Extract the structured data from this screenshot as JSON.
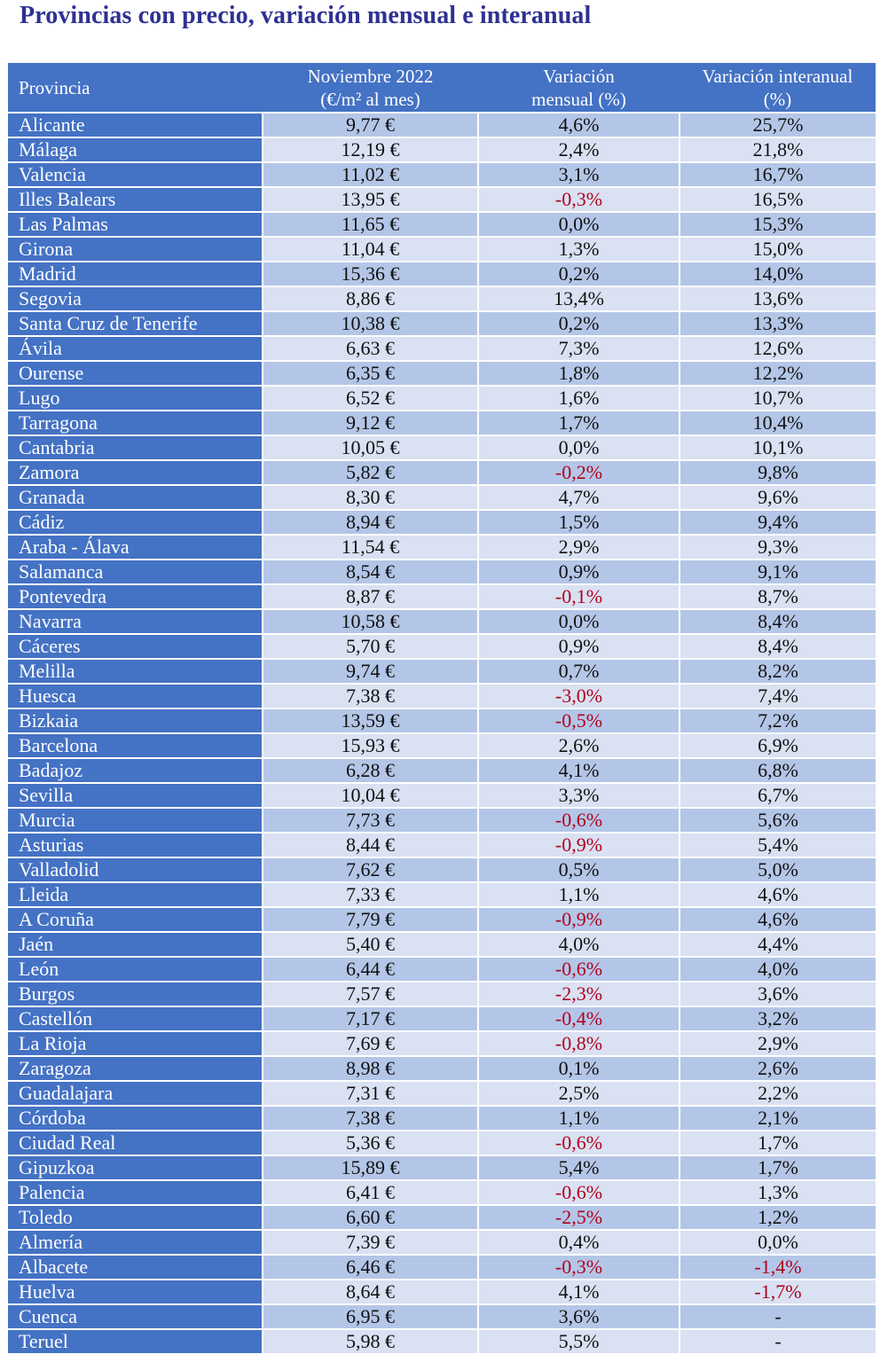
{
  "title": "Provincias con precio, variación mensual e interanual",
  "colors": {
    "header": "#4472c4",
    "row_dark": "#b4c6e7",
    "row_light": "#d9e1f2",
    "negative": "#b0001e",
    "title": "#2e3192"
  },
  "table": {
    "headers": [
      "Provincia",
      "Noviembre 2022",
      "(€/m² al mes)",
      "Variación",
      "mensual (%)",
      "Variación interanual",
      "(%)"
    ],
    "rows": [
      [
        "Alicante",
        "9,77 €",
        "4,6%",
        "25,7%"
      ],
      [
        "Málaga",
        "12,19 €",
        "2,4%",
        "21,8%"
      ],
      [
        "Valencia",
        "11,02 €",
        "3,1%",
        "16,7%"
      ],
      [
        "Illes Balears",
        "13,95 €",
        "-0,3%",
        "16,5%"
      ],
      [
        "Las Palmas",
        "11,65 €",
        "0,0%",
        "15,3%"
      ],
      [
        "Girona",
        "11,04 €",
        "1,3%",
        "15,0%"
      ],
      [
        "Madrid",
        "15,36 €",
        "0,2%",
        "14,0%"
      ],
      [
        "Segovia",
        "8,86 €",
        "13,4%",
        "13,6%"
      ],
      [
        "Santa Cruz de Tenerife",
        "10,38 €",
        "0,2%",
        "13,3%"
      ],
      [
        "Ávila",
        "6,63 €",
        "7,3%",
        "12,6%"
      ],
      [
        "Ourense",
        "6,35 €",
        "1,8%",
        "12,2%"
      ],
      [
        "Lugo",
        "6,52 €",
        "1,6%",
        "10,7%"
      ],
      [
        "Tarragona",
        "9,12 €",
        "1,7%",
        "10,4%"
      ],
      [
        "Cantabria",
        "10,05 €",
        "0,0%",
        "10,1%"
      ],
      [
        "Zamora",
        "5,82 €",
        "-0,2%",
        "9,8%"
      ],
      [
        "Granada",
        "8,30 €",
        "4,7%",
        "9,6%"
      ],
      [
        "Cádiz",
        "8,94 €",
        "1,5%",
        "9,4%"
      ],
      [
        "Araba - Álava",
        "11,54 €",
        "2,9%",
        "9,3%"
      ],
      [
        "Salamanca",
        "8,54 €",
        "0,9%",
        "9,1%"
      ],
      [
        "Pontevedra",
        "8,87 €",
        "-0,1%",
        "8,7%"
      ],
      [
        "Navarra",
        "10,58 €",
        "0,0%",
        "8,4%"
      ],
      [
        "Cáceres",
        "5,70 €",
        "0,9%",
        "8,4%"
      ],
      [
        "Melilla",
        "9,74 €",
        "0,7%",
        "8,2%"
      ],
      [
        "Huesca",
        "7,38 €",
        "-3,0%",
        "7,4%"
      ],
      [
        "Bizkaia",
        "13,59 €",
        "-0,5%",
        "7,2%"
      ],
      [
        "Barcelona",
        "15,93 €",
        "2,6%",
        "6,9%"
      ],
      [
        "Badajoz",
        "6,28 €",
        "4,1%",
        "6,8%"
      ],
      [
        "Sevilla",
        "10,04 €",
        "3,3%",
        "6,7%"
      ],
      [
        "Murcia",
        "7,73 €",
        "-0,6%",
        "5,6%"
      ],
      [
        "Asturias",
        "8,44 €",
        "-0,9%",
        "5,4%"
      ],
      [
        "Valladolid",
        "7,62 €",
        "0,5%",
        "5,0%"
      ],
      [
        "Lleida",
        "7,33 €",
        "1,1%",
        "4,6%"
      ],
      [
        "A Coruña",
        "7,79 €",
        "-0,9%",
        "4,6%"
      ],
      [
        "Jaén",
        "5,40 €",
        "4,0%",
        "4,4%"
      ],
      [
        "León",
        "6,44 €",
        "-0,6%",
        "4,0%"
      ],
      [
        "Burgos",
        "7,57 €",
        "-2,3%",
        "3,6%"
      ],
      [
        "Castellón",
        "7,17 €",
        "-0,4%",
        "3,2%"
      ],
      [
        "La Rioja",
        "7,69 €",
        "-0,8%",
        "2,9%"
      ],
      [
        "Zaragoza",
        "8,98 €",
        "0,1%",
        "2,6%"
      ],
      [
        "Guadalajara",
        "7,31 €",
        "2,5%",
        "2,2%"
      ],
      [
        "Córdoba",
        "7,38 €",
        "1,1%",
        "2,1%"
      ],
      [
        "Ciudad Real",
        "5,36 €",
        "-0,6%",
        "1,7%"
      ],
      [
        "Gipuzkoa",
        "15,89 €",
        "5,4%",
        "1,7%"
      ],
      [
        "Palencia",
        "6,41 €",
        "-0,6%",
        "1,3%"
      ],
      [
        "Toledo",
        "6,60 €",
        "-2,5%",
        "1,2%"
      ],
      [
        "Almería",
        "7,39 €",
        "0,4%",
        "0,0%"
      ],
      [
        "Albacete",
        "6,46 €",
        "-0,3%",
        "-1,4%"
      ],
      [
        "Huelva",
        "8,64 €",
        "4,1%",
        "-1,7%"
      ],
      [
        "Cuenca",
        "6,95 €",
        "3,6%",
        "-"
      ],
      [
        "Teruel",
        "5,98 €",
        "5,5%",
        "-"
      ]
    ]
  }
}
